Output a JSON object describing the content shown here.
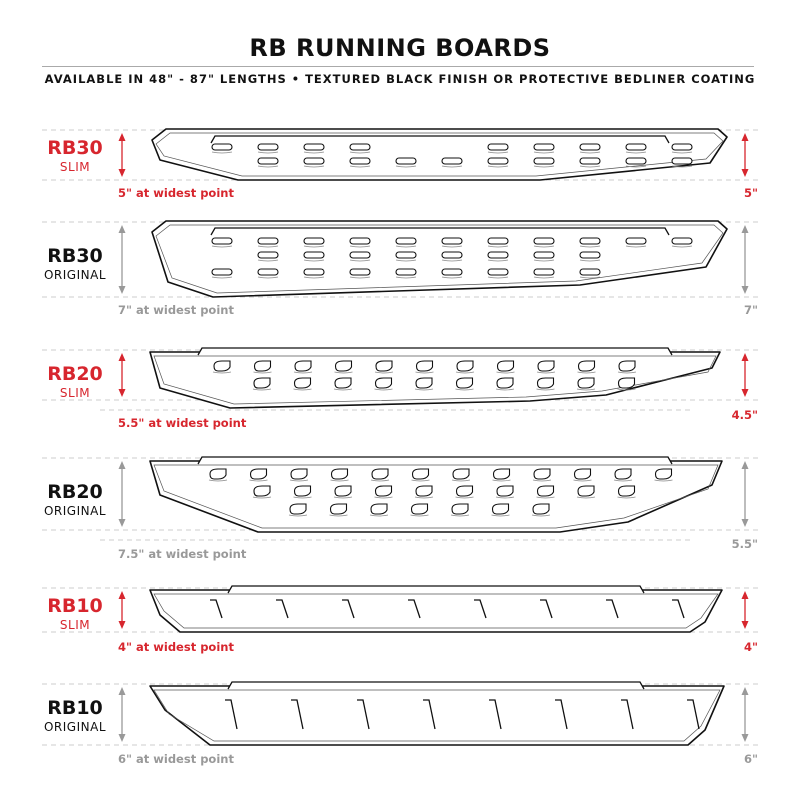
{
  "header": {
    "title": "RB RUNNING BOARDS",
    "subtitle": "AVAILABLE IN 48\" - 87\" LENGTHS  •  TEXTURED BLACK FINISH OR PROTECTIVE BEDLINER COATING"
  },
  "colors": {
    "accent_red": "#d7262e",
    "gray": "#999999",
    "line": "#111111"
  },
  "boards": [
    {
      "name": "RB30",
      "variant": "SLIM",
      "widest": "5\" at widest point",
      "end_height": "5\"",
      "color": "red",
      "hole_style": "slot"
    },
    {
      "name": "RB30",
      "variant": "ORIGINAL",
      "widest": "7\" at widest point",
      "end_height": "7\"",
      "color": "gray",
      "hole_style": "slot"
    },
    {
      "name": "RB20",
      "variant": "SLIM",
      "widest": "5.5\" at widest point",
      "end_height": "4.5\"",
      "color": "red",
      "hole_style": "d-shape"
    },
    {
      "name": "RB20",
      "variant": "ORIGINAL",
      "widest": "7.5\" at widest point",
      "end_height": "5.5\"",
      "color": "gray",
      "hole_style": "d-shape"
    },
    {
      "name": "RB10",
      "variant": "SLIM",
      "widest": "4\" at widest point",
      "end_height": "4\"",
      "color": "red",
      "hole_style": "slash"
    },
    {
      "name": "RB10",
      "variant": "ORIGINAL",
      "widest": "6\" at widest point",
      "end_height": "6\"",
      "color": "gray",
      "hole_style": "slash"
    }
  ]
}
